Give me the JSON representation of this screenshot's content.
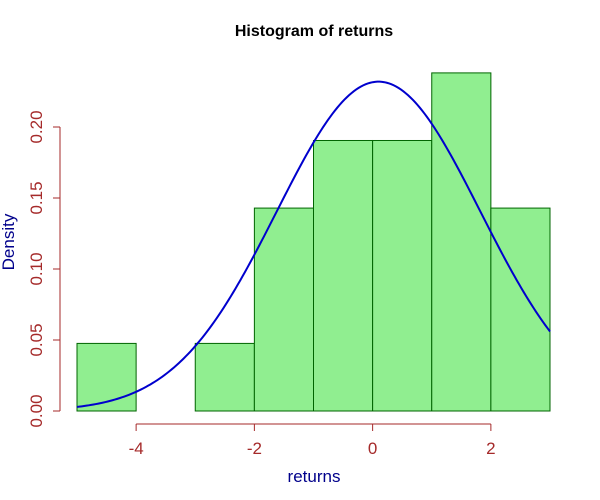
{
  "chart_data": {
    "type": "bar",
    "title": "Histogram of returns",
    "xlabel": "returns",
    "ylabel": "Density",
    "xlim": [
      -5,
      3
    ],
    "ylim": [
      0,
      0.24
    ],
    "x_ticks": [
      -4,
      -2,
      0,
      2
    ],
    "x_tick_labels": [
      "-4",
      "-2",
      "0",
      "2"
    ],
    "y_ticks": [
      0,
      0.05,
      0.1,
      0.15,
      0.2
    ],
    "y_tick_labels": [
      "0.00",
      "0.05",
      "0.10",
      "0.15",
      "0.20"
    ],
    "bins": [
      {
        "x0": -5,
        "x1": -4,
        "density": 0.0476
      },
      {
        "x0": -4,
        "x1": -3,
        "density": 0.0
      },
      {
        "x0": -3,
        "x1": -2,
        "density": 0.0476
      },
      {
        "x0": -2,
        "x1": -1,
        "density": 0.1429
      },
      {
        "x0": -1,
        "x1": 0,
        "density": 0.1905
      },
      {
        "x0": 0,
        "x1": 1,
        "density": 0.1905
      },
      {
        "x0": 1,
        "x1": 2,
        "density": 0.2381
      },
      {
        "x0": 2,
        "x1": 3,
        "density": 0.1429
      }
    ],
    "density_curve": {
      "type": "normal",
      "mean": 0.1,
      "sd": 1.72,
      "x_range": [
        -5,
        3
      ]
    },
    "grid": false,
    "colors": {
      "bar_fill": "#90ee90",
      "bar_border": "#006400",
      "curve": "#0000cd",
      "axis_text": "#a52a2a",
      "axis_title": "#00008b",
      "title": "#000000"
    }
  }
}
